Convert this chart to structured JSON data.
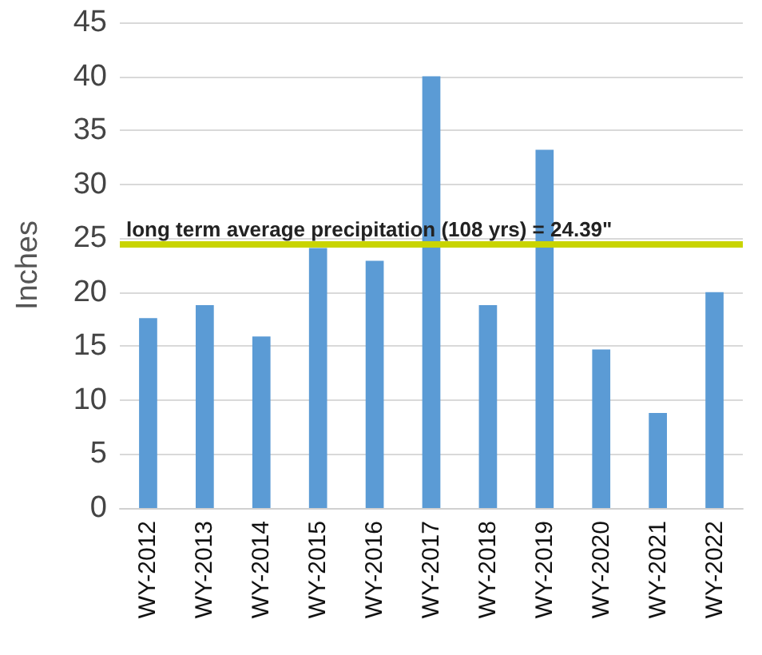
{
  "chart_data": {
    "type": "bar",
    "ylabel": "Inches",
    "categories": [
      "WY-2012",
      "WY-2013",
      "WY-2014",
      "WY-2015",
      "WY-2016",
      "WY-2017",
      "WY-2018",
      "WY-2019",
      "WY-2020",
      "WY-2021",
      "WY-2022"
    ],
    "values": [
      17.6,
      18.8,
      15.9,
      24.1,
      22.9,
      40.0,
      18.8,
      33.2,
      14.7,
      8.8,
      20.0
    ],
    "color": "#5b9bd5",
    "ylim": [
      0,
      45
    ],
    "yticks": [
      0,
      5,
      10,
      15,
      20,
      25,
      30,
      35,
      40,
      45
    ],
    "grid": "y",
    "ref_lines": [
      {
        "axis": "y",
        "value": 24.39,
        "label": "long term average precipitation (108 yrs) = 24.39\"",
        "color": "#c9d400"
      }
    ]
  }
}
